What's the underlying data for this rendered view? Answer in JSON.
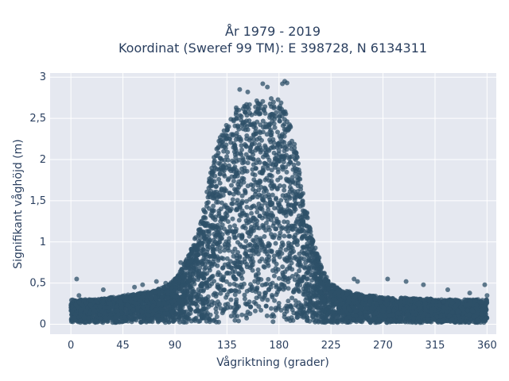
{
  "chart_data": {
    "type": "scatter",
    "title_lines": [
      "År 1979 - 2019",
      "Koordinat (Sweref 99 TM): E 398728, N 6134311"
    ],
    "xlabel": "Vågriktning (grader)",
    "ylabel": "Signifikant våghöjd (m)",
    "xlim": [
      -18,
      368
    ],
    "ylim": [
      -0.12,
      3.05
    ],
    "x_ticks": [
      0,
      45,
      90,
      135,
      180,
      225,
      270,
      315,
      360
    ],
    "x_tick_labels": [
      "0",
      "45",
      "90",
      "135",
      "180",
      "225",
      "270",
      "315",
      "360"
    ],
    "y_ticks": [
      0,
      0.5,
      1,
      1.5,
      2,
      2.5,
      3
    ],
    "y_tick_labels": [
      "0",
      "0,5",
      "1",
      "1,5",
      "2",
      "2,5",
      "3"
    ],
    "grid": true,
    "legend": "none",
    "colors": {
      "marker": "#2e5068",
      "plot_bg": "#e5e8f0",
      "grid": "#ffffff",
      "text": "#2a3f5f"
    },
    "envelope": {
      "direction_deg": [
        0,
        10,
        20,
        30,
        40,
        50,
        60,
        70,
        80,
        90,
        95,
        100,
        105,
        110,
        115,
        120,
        125,
        130,
        135,
        140,
        145,
        150,
        155,
        160,
        165,
        170,
        175,
        180,
        185,
        190,
        195,
        200,
        205,
        210,
        215,
        220,
        225,
        230,
        235,
        240,
        245,
        250,
        255,
        260,
        270,
        280,
        290,
        300,
        310,
        320,
        330,
        340,
        350,
        360
      ],
      "max_height_m": [
        0.3,
        0.3,
        0.3,
        0.32,
        0.34,
        0.36,
        0.38,
        0.4,
        0.45,
        0.55,
        0.65,
        0.8,
        0.95,
        1.15,
        1.45,
        1.8,
        2.1,
        2.35,
        2.5,
        2.6,
        2.65,
        2.7,
        2.72,
        2.72,
        2.72,
        2.73,
        2.75,
        2.75,
        2.6,
        2.4,
        2.1,
        1.7,
        1.3,
        1.0,
        0.8,
        0.6,
        0.5,
        0.45,
        0.42,
        0.4,
        0.38,
        0.37,
        0.35,
        0.35,
        0.33,
        0.32,
        0.32,
        0.31,
        0.31,
        0.3,
        0.3,
        0.3,
        0.3,
        0.3
      ],
      "min_height_m": 0.02
    },
    "outliers": [
      {
        "x": 5,
        "y": 0.55
      },
      {
        "x": 7,
        "y": 0.35
      },
      {
        "x": 28,
        "y": 0.42
      },
      {
        "x": 55,
        "y": 0.45
      },
      {
        "x": 62,
        "y": 0.48
      },
      {
        "x": 74,
        "y": 0.52
      },
      {
        "x": 82,
        "y": 0.5
      },
      {
        "x": 95,
        "y": 0.75
      },
      {
        "x": 146,
        "y": 2.85
      },
      {
        "x": 153,
        "y": 2.82
      },
      {
        "x": 166,
        "y": 2.92
      },
      {
        "x": 170,
        "y": 2.88
      },
      {
        "x": 183,
        "y": 2.92
      },
      {
        "x": 185,
        "y": 2.95
      },
      {
        "x": 187,
        "y": 2.93
      },
      {
        "x": 245,
        "y": 0.55
      },
      {
        "x": 248,
        "y": 0.52
      },
      {
        "x": 274,
        "y": 0.55
      },
      {
        "x": 290,
        "y": 0.52
      },
      {
        "x": 305,
        "y": 0.48
      },
      {
        "x": 326,
        "y": 0.42
      },
      {
        "x": 345,
        "y": 0.38
      },
      {
        "x": 358,
        "y": 0.48
      },
      {
        "x": 360,
        "y": 0.35
      }
    ]
  }
}
